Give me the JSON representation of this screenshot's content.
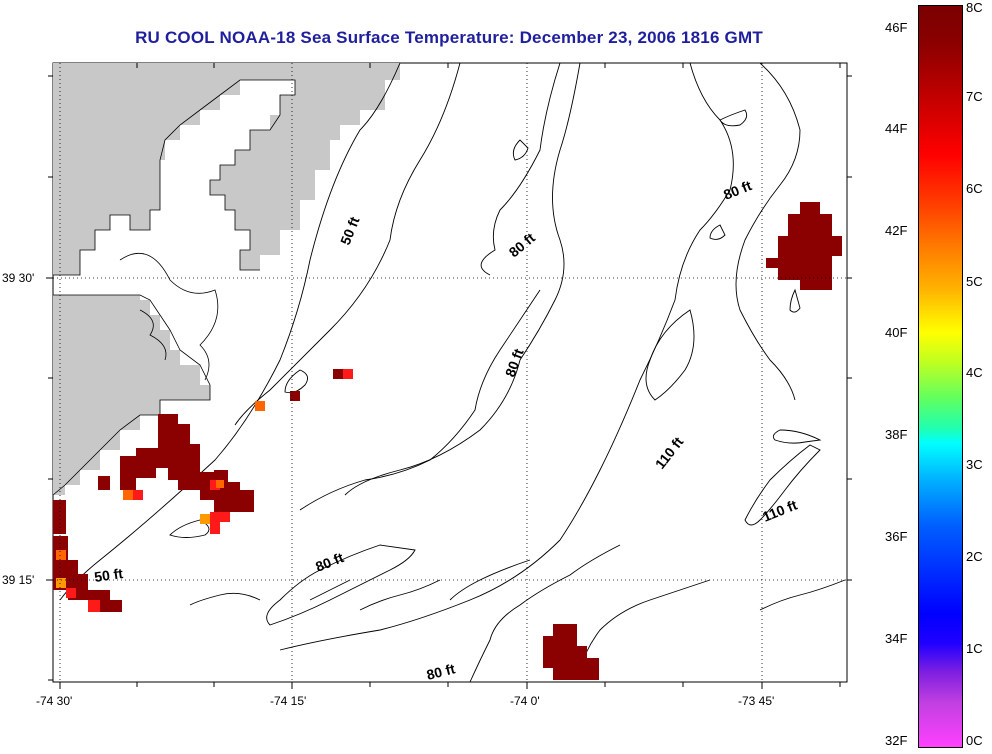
{
  "title": "RU COOL  NOAA-18  Sea Surface Temperature:  December 23, 2006 1816 GMT",
  "axes": {
    "x_ticks": [
      "-74 30'",
      "-74 15'",
      "-74 0'",
      "-73 45'"
    ],
    "y_ticks": [
      "39 30'",
      "39 15'"
    ]
  },
  "contours": [
    {
      "label": "50 ft"
    },
    {
      "label": "80 ft"
    },
    {
      "label": "80 ft"
    },
    {
      "label": "80 ft"
    },
    {
      "label": "110 ft"
    },
    {
      "label": "110 ft"
    },
    {
      "label": "50 ft"
    },
    {
      "label": "80 ft"
    },
    {
      "label": "80 ft"
    }
  ],
  "colorbar": {
    "fahrenheit": [
      "46F",
      "44F",
      "42F",
      "40F",
      "38F",
      "36F",
      "34F",
      "32F"
    ],
    "celsius": [
      "8C",
      "7C",
      "6C",
      "5C",
      "4C",
      "3C",
      "2C",
      "1C",
      "0C"
    ]
  },
  "colors": {
    "land": "#c8c8c8",
    "sst_warm": "#8b0000",
    "sst_red": "#ff1a1a",
    "sst_orange": "#ff6600",
    "title": "#1f1f9e"
  }
}
